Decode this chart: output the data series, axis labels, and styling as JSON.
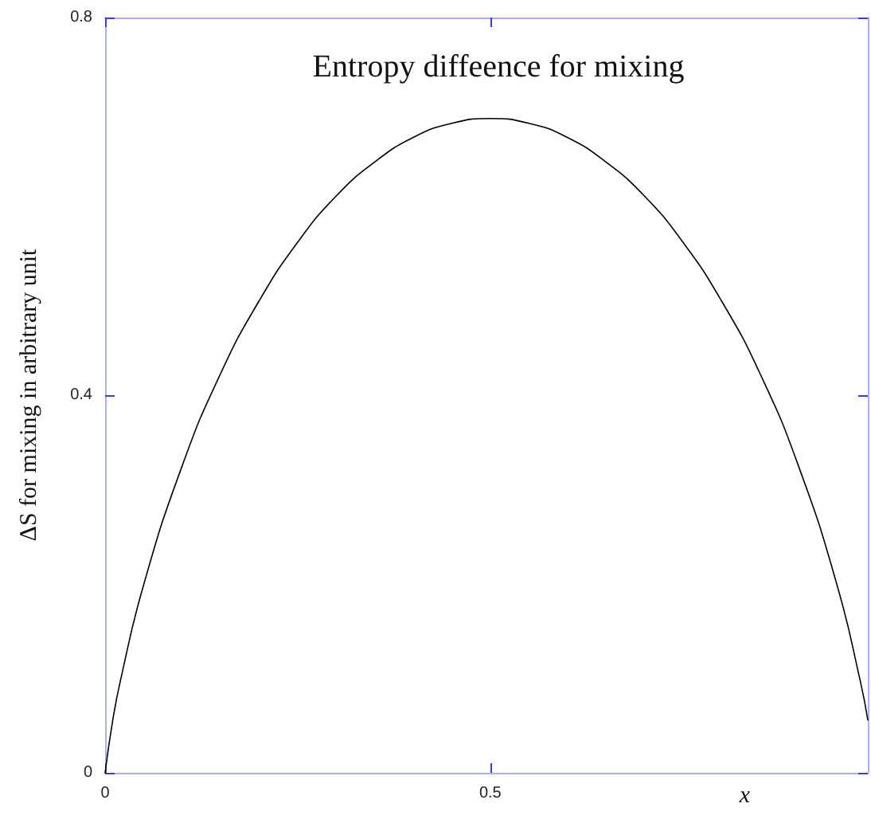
{
  "chart_data": {
    "type": "line",
    "title": "Entropy diffeence for mixing",
    "xlabel": "x",
    "ylabel": "ΔS for mixing in arbitrary unit",
    "x": [
      0,
      0.01,
      0.02,
      0.05,
      0.1,
      0.15,
      0.2,
      0.25,
      0.3,
      0.35,
      0.4,
      0.45,
      0.5,
      0.55,
      0.6,
      0.65,
      0.7,
      0.75,
      0.8,
      0.85,
      0.9,
      0.95,
      0.98,
      0.99
    ],
    "series": [
      {
        "color": "#000000",
        "values": [
          0,
          0.056,
          0.098,
          0.199,
          0.325,
          0.423,
          0.5,
          0.562,
          0.611,
          0.647,
          0.673,
          0.688,
          0.693,
          0.688,
          0.673,
          0.647,
          0.611,
          0.562,
          0.5,
          0.423,
          0.325,
          0.199,
          0.098,
          0.056
        ]
      }
    ],
    "xlim": [
      0,
      0.99
    ],
    "xticks": [
      0,
      0.5
    ],
    "ylim": [
      0,
      0.8
    ],
    "yticks": [
      0,
      0.4,
      0.8
    ],
    "grid": false,
    "marker": "none",
    "line_style": "solid"
  }
}
